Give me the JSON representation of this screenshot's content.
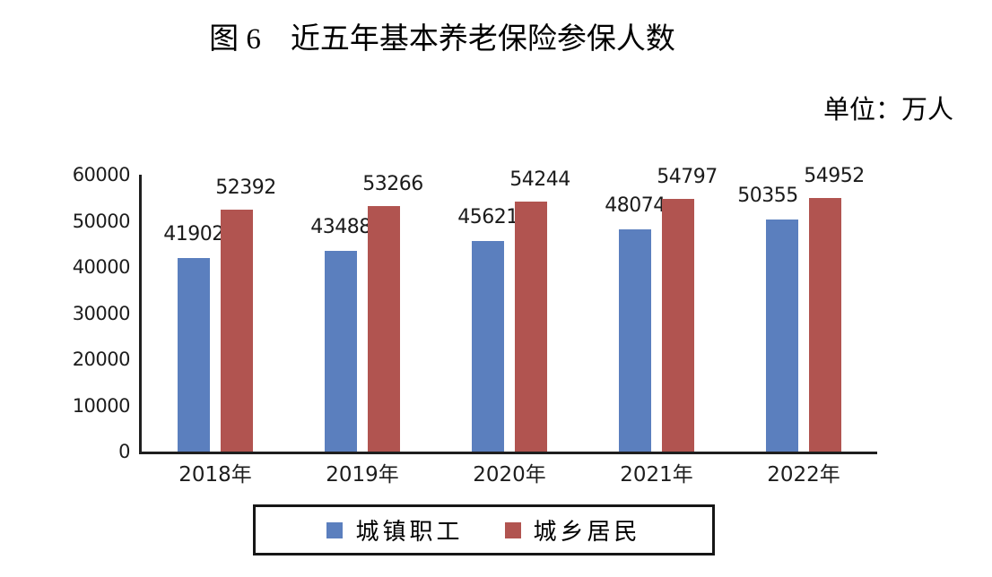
{
  "figure": {
    "title": "图 6　近五年基本养老保险参保人数",
    "unit_label": "单位：万人"
  },
  "chart_data": {
    "type": "bar",
    "title": "图 6　近五年基本养老保险参保人数",
    "unit": "万人",
    "categories": [
      "2018年",
      "2019年",
      "2020年",
      "2021年",
      "2022年"
    ],
    "series": [
      {
        "name": "城镇职工",
        "slug": "urban-employees",
        "color": "#5b7fbe",
        "values": [
          41902,
          43488,
          45621,
          48074,
          50355
        ]
      },
      {
        "name": "城乡居民",
        "slug": "urban-rural-residents",
        "color": "#b15450",
        "values": [
          52392,
          53266,
          54244,
          54797,
          54952
        ]
      }
    ],
    "ylim": [
      0,
      60000
    ],
    "yticks": [
      0,
      10000,
      20000,
      30000,
      40000,
      50000,
      60000
    ],
    "grid": false,
    "legend_position": "bottom",
    "value_labels": true,
    "axis_color": "#1f1f1f"
  }
}
